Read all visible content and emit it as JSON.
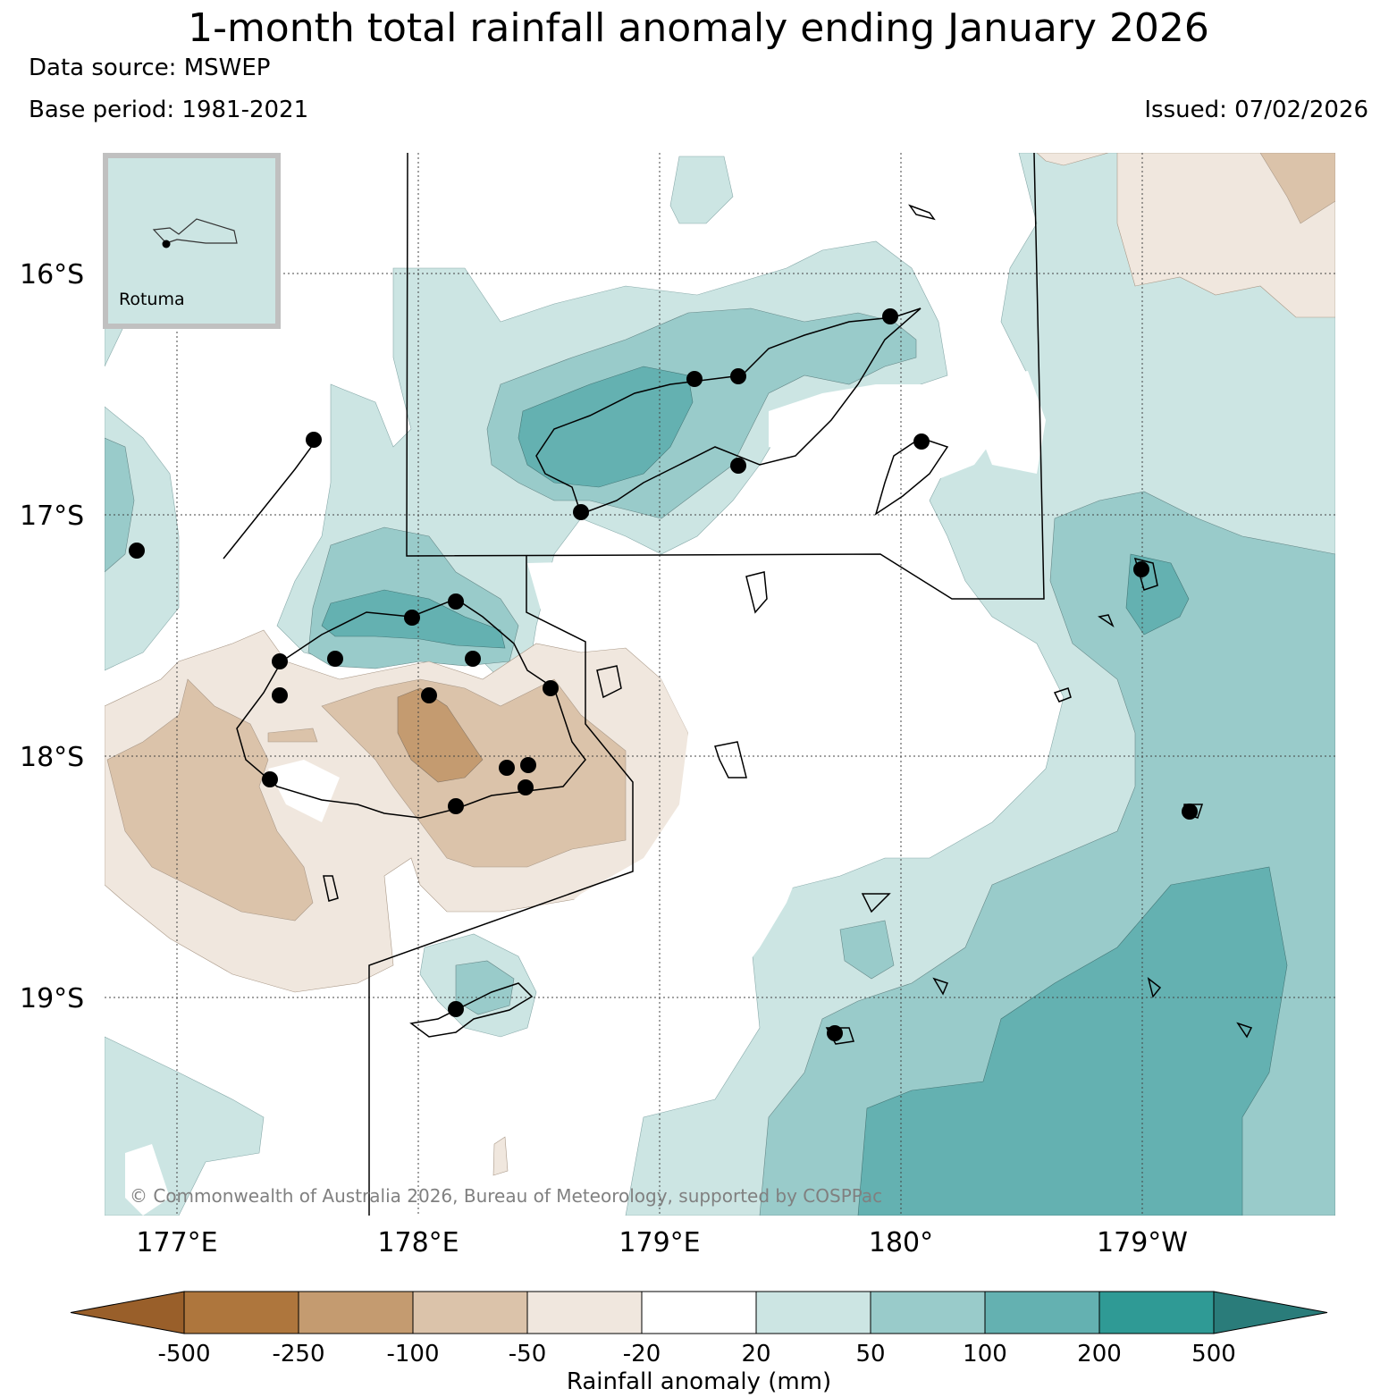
{
  "header": {
    "title": "1-month total rainfall anomaly ending January 2026",
    "data_source": "Data source: MSWEP",
    "base_period": "Base period: 1981-2021",
    "issued": "Issued: 07/02/2026"
  },
  "map": {
    "latitude_labels": [
      "16°S",
      "17°S",
      "18°S",
      "19°S"
    ],
    "longitude_labels": [
      "177°E",
      "178°E",
      "179°E",
      "180°",
      "179°W"
    ],
    "copyright": "© Commonwealth of Australia 2026, Bureau of Meteorology, supported by COSPPac",
    "inset": {
      "label": "Rotuma"
    }
  },
  "legend": {
    "title": "Rainfall anomaly (mm)",
    "ticks": [
      "-500",
      "-250",
      "-100",
      "-50",
      "-20",
      "20",
      "50",
      "100",
      "200",
      "500"
    ],
    "colors": [
      "#995f2a",
      "#ae763d",
      "#c49b70",
      "#dbc3aa",
      "#f0e7de",
      "#ffffff",
      "#cce5e3",
      "#99cbca",
      "#64b1b1",
      "#2f9a95",
      "#2a7c7a"
    ]
  },
  "colors": {
    "dry_strong": "#c49b70",
    "dry_moderate": "#dbc3aa",
    "dry_light": "#f0e7de",
    "wet_light": "#cce5e3",
    "wet_moderate": "#99cbca",
    "wet_strong": "#64b1b1",
    "inset_border": "#c0c0c0"
  }
}
